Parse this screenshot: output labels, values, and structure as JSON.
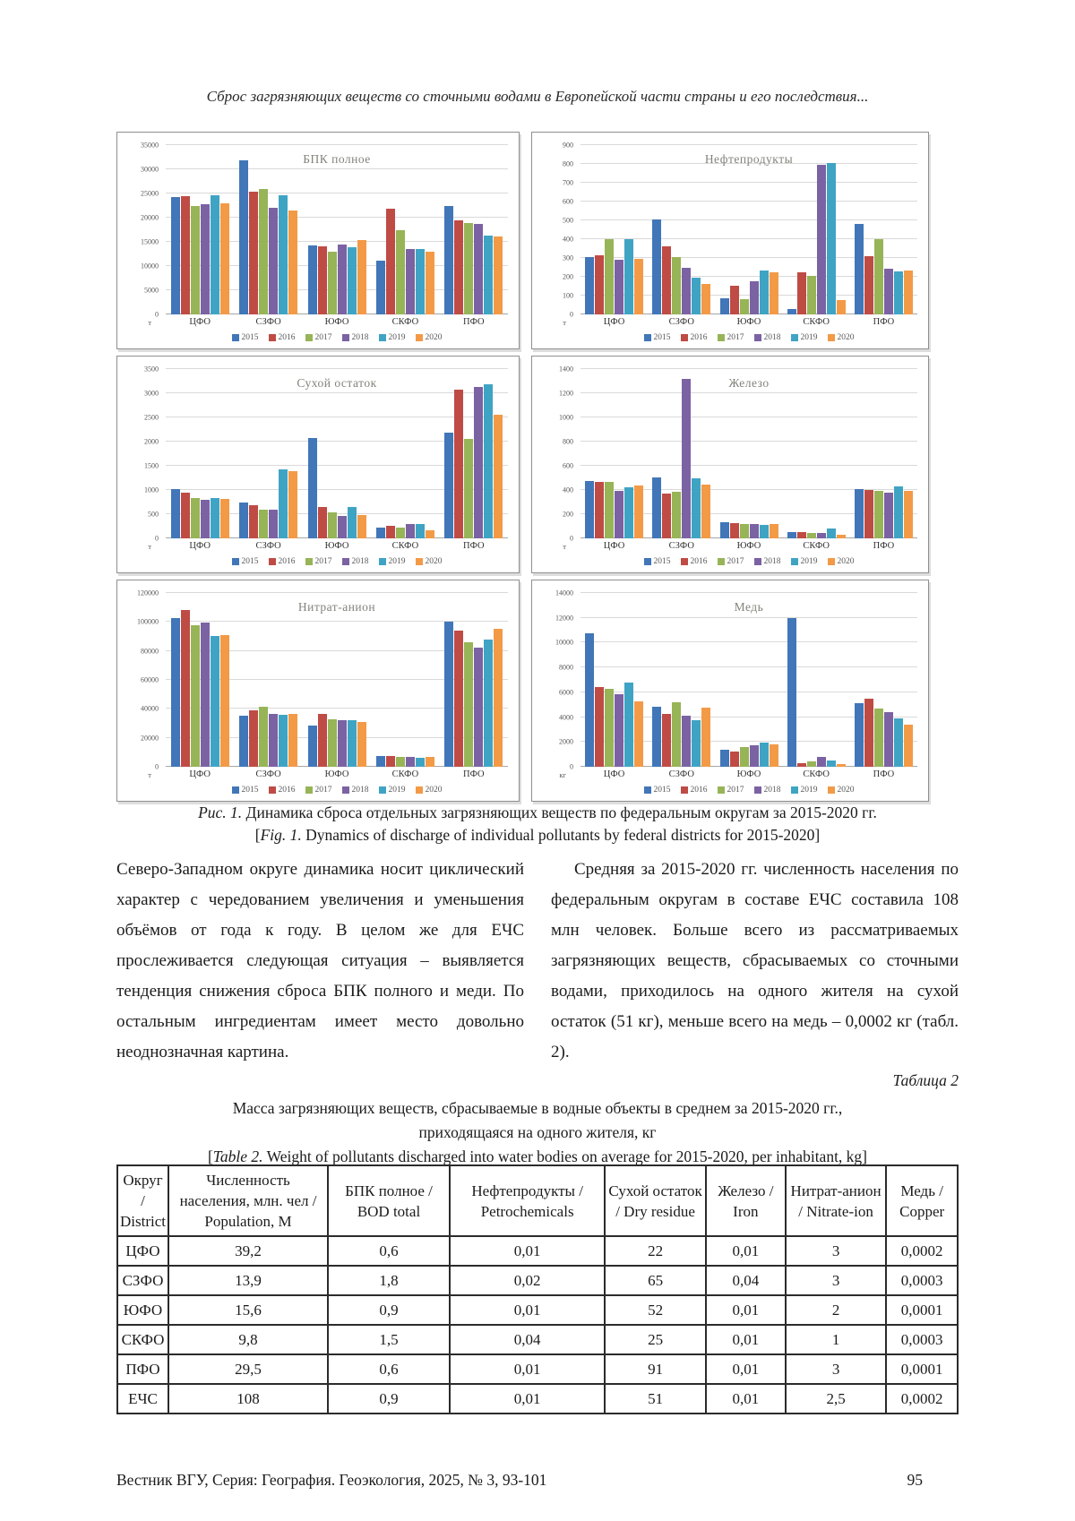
{
  "page": {
    "running_head": "Сброс загрязняющих веществ со сточными водами в Европейской части страны и его последствия...",
    "footer": {
      "journal": "Вестник ВГУ, Серия: География. Геоэкология, 2025, № 3, 93-101",
      "page_number": "95"
    }
  },
  "figure": {
    "caption_ru_label": "Рис. 1.",
    "caption_ru": "Динамика сброса отдельных загрязняющих веществ по федеральным округам за 2015-2020 гг.",
    "caption_en_open": "[",
    "caption_en_label": "Fig. 1.",
    "caption_en": "Dynamics of discharge of individual pollutants by federal districts for 2015-2020]"
  },
  "chart_data": [
    {
      "type": "bar",
      "title": "БПК полное",
      "unit": "т",
      "categories": [
        "ЦФО",
        "СЗФО",
        "ЮФО",
        "СКФО",
        "ПФО"
      ],
      "ylim": [
        0,
        35000
      ],
      "ytick_step": 5000,
      "grid": true,
      "legend_position": "bottom",
      "palette": [
        "#4176b8",
        "#bf4b45",
        "#97b457",
        "#7b62a3",
        "#3fa4c4",
        "#f39a47"
      ],
      "series": [
        {
          "name": "2015",
          "values": [
            24200,
            31900,
            14200,
            11200,
            22500
          ]
        },
        {
          "name": "2016",
          "values": [
            24500,
            25300,
            14100,
            21900,
            19500
          ]
        },
        {
          "name": "2017",
          "values": [
            22500,
            25900,
            13000,
            17500,
            18800
          ]
        },
        {
          "name": "2018",
          "values": [
            22800,
            22000,
            14400,
            13500,
            18700
          ]
        },
        {
          "name": "2019",
          "values": [
            24600,
            24700,
            13900,
            13500,
            16300
          ]
        },
        {
          "name": "2020",
          "values": [
            23000,
            21500,
            15300,
            12900,
            16100
          ]
        }
      ]
    },
    {
      "type": "bar",
      "title": "Нефтепродукты",
      "unit": "т",
      "categories": [
        "ЦФО",
        "СЗФО",
        "ЮФО",
        "СКФО",
        "ПФО"
      ],
      "ylim": [
        0,
        900
      ],
      "ytick_step": 100,
      "grid": true,
      "legend_position": "bottom",
      "palette": [
        "#4176b8",
        "#bf4b45",
        "#97b457",
        "#7b62a3",
        "#3fa4c4",
        "#f39a47"
      ],
      "series": [
        {
          "name": "2015",
          "values": [
            305,
            505,
            88,
            30,
            480
          ]
        },
        {
          "name": "2016",
          "values": [
            312,
            360,
            152,
            222,
            308
          ]
        },
        {
          "name": "2017",
          "values": [
            400,
            303,
            80,
            207,
            400
          ]
        },
        {
          "name": "2018",
          "values": [
            290,
            247,
            177,
            797,
            245
          ]
        },
        {
          "name": "2019",
          "values": [
            400,
            197,
            233,
            805,
            230
          ]
        },
        {
          "name": "2020",
          "values": [
            293,
            163,
            222,
            75,
            235
          ]
        }
      ]
    },
    {
      "type": "bar",
      "title": "Сухой остаток",
      "unit": "т",
      "categories": [
        "ЦФО",
        "СЗФО",
        "ЮФО",
        "СКФО",
        "ПФО"
      ],
      "ylim": [
        0,
        3500
      ],
      "ytick_step": 500,
      "grid": true,
      "legend_position": "bottom",
      "palette": [
        "#4176b8",
        "#bf4b45",
        "#97b457",
        "#7b62a3",
        "#3fa4c4",
        "#f39a47"
      ],
      "series": [
        {
          "name": "2015",
          "values": [
            1010,
            740,
            2080,
            220,
            2180
          ]
        },
        {
          "name": "2016",
          "values": [
            940,
            690,
            640,
            260,
            3080
          ]
        },
        {
          "name": "2017",
          "values": [
            840,
            600,
            540,
            230,
            2050
          ]
        },
        {
          "name": "2018",
          "values": [
            790,
            590,
            460,
            300,
            3130
          ]
        },
        {
          "name": "2019",
          "values": [
            830,
            1420,
            640,
            290,
            3190
          ]
        },
        {
          "name": "2020",
          "values": [
            810,
            1390,
            490,
            170,
            2560
          ]
        }
      ]
    },
    {
      "type": "bar",
      "title": "Железо",
      "unit": "т",
      "categories": [
        "ЦФО",
        "СЗФО",
        "ЮФО",
        "СКФО",
        "ПФО"
      ],
      "ylim": [
        0,
        1400
      ],
      "ytick_step": 200,
      "grid": true,
      "legend_position": "bottom",
      "palette": [
        "#4176b8",
        "#bf4b45",
        "#97b457",
        "#7b62a3",
        "#3fa4c4",
        "#f39a47"
      ],
      "series": [
        {
          "name": "2015",
          "values": [
            475,
            505,
            130,
            50,
            410
          ]
        },
        {
          "name": "2016",
          "values": [
            465,
            370,
            125,
            50,
            400
          ]
        },
        {
          "name": "2017",
          "values": [
            465,
            385,
            115,
            45,
            395
          ]
        },
        {
          "name": "2018",
          "values": [
            390,
            1320,
            115,
            45,
            380
          ]
        },
        {
          "name": "2019",
          "values": [
            420,
            500,
            110,
            80,
            430
          ]
        },
        {
          "name": "2020",
          "values": [
            440,
            445,
            115,
            30,
            390
          ]
        }
      ]
    },
    {
      "type": "bar",
      "title": "Нитрат-анион",
      "unit": "т",
      "categories": [
        "ЦФО",
        "СЗФО",
        "ЮФО",
        "СКФО",
        "ПФО"
      ],
      "ylim": [
        0,
        120000
      ],
      "ytick_step": 20000,
      "grid": true,
      "legend_position": "bottom",
      "palette": [
        "#4176b8",
        "#bf4b45",
        "#97b457",
        "#7b62a3",
        "#3fa4c4",
        "#f39a47"
      ],
      "series": [
        {
          "name": "2015",
          "values": [
            102500,
            35500,
            28500,
            7500,
            100300
          ]
        },
        {
          "name": "2016",
          "values": [
            108500,
            39000,
            36200,
            7200,
            94000
          ]
        },
        {
          "name": "2017",
          "values": [
            97500,
            41500,
            32500,
            7000,
            86000
          ]
        },
        {
          "name": "2018",
          "values": [
            99500,
            36500,
            32300,
            6800,
            82500
          ]
        },
        {
          "name": "2019",
          "values": [
            90500,
            35800,
            32000,
            6500,
            88000
          ]
        },
        {
          "name": "2020",
          "values": [
            91000,
            36300,
            30800,
            6700,
            95500
          ]
        }
      ]
    },
    {
      "type": "bar",
      "title": "Медь",
      "unit": "кг",
      "categories": [
        "ЦФО",
        "СЗФО",
        "ЮФО",
        "СКФО",
        "ПФО"
      ],
      "ylim": [
        0,
        14000
      ],
      "ytick_step": 2000,
      "grid": true,
      "legend_position": "bottom",
      "palette": [
        "#4176b8",
        "#bf4b45",
        "#97b457",
        "#7b62a3",
        "#3fa4c4",
        "#f39a47"
      ],
      "series": [
        {
          "name": "2015",
          "values": [
            10750,
            4850,
            1400,
            11950,
            5100
          ]
        },
        {
          "name": "2016",
          "values": [
            6450,
            4250,
            1200,
            300,
            5450
          ]
        },
        {
          "name": "2017",
          "values": [
            6250,
            5200,
            1600,
            450,
            4700
          ]
        },
        {
          "name": "2018",
          "values": [
            5850,
            4100,
            1750,
            800,
            4400
          ]
        },
        {
          "name": "2019",
          "values": [
            6750,
            3750,
            1950,
            500,
            3900
          ]
        },
        {
          "name": "2020",
          "values": [
            5250,
            4800,
            1800,
            250,
            3400
          ]
        }
      ]
    }
  ],
  "body": {
    "col_left": "Северо-Западном округе динамика носит циклический характер с чередованием увеличения и уменьшения объёмов от года к году. В целом же для ЕЧС прослеживается следующая ситуация – выявляется тенденция снижения сброса БПК полного и меди. По остальным ингредиентам имеет место довольно неоднозначная картина.",
    "col_right": "Средняя за 2015-2020 гг. численность населения по федеральным округам в составе ЕЧС составила 108 млн человек. Больше всего из рассматриваемых загрязняющих веществ, сбрасываемых со сточными водами, приходилось на одного жителя на сухой остаток (51 кг), меньше всего на медь – 0,0002 кг (табл. 2)."
  },
  "table": {
    "label": "Таблица 2",
    "caption_ru_line1": "Масса загрязняющих веществ, сбрасываемые в водные объекты в среднем за 2015-2020 гг.,",
    "caption_ru_line2": "приходящаяся на одного жителя, кг",
    "caption_en_open": "[",
    "caption_en_label": "Table 2.",
    "caption_en": "Weight of pollutants discharged into water bodies on average for 2015-2020, per inhabitant, kg]",
    "headers": [
      "Округ / District",
      "Численность населения, млн. чел / Population, M",
      "БПК полное / BOD total",
      "Нефтепродукты / Petrochemicals",
      "Сухой остаток / Dry residue",
      "Железо / Iron",
      "Нитрат-анион / Nitrate-ion",
      "Медь / Copper"
    ],
    "col_widths": [
      "6%",
      "19%",
      "14.5%",
      "18.5%",
      "12%",
      "9.5%",
      "12%",
      "8.5%"
    ],
    "rows": [
      [
        "ЦФО",
        "39,2",
        "0,6",
        "0,01",
        "22",
        "0,01",
        "3",
        "0,0002"
      ],
      [
        "СЗФО",
        "13,9",
        "1,8",
        "0,02",
        "65",
        "0,04",
        "3",
        "0,0003"
      ],
      [
        "ЮФО",
        "15,6",
        "0,9",
        "0,01",
        "52",
        "0,01",
        "2",
        "0,0001"
      ],
      [
        "СКФО",
        "9,8",
        "1,5",
        "0,04",
        "25",
        "0,01",
        "1",
        "0,0003"
      ],
      [
        "ПФО",
        "29,5",
        "0,6",
        "0,01",
        "91",
        "0,01",
        "3",
        "0,0001"
      ],
      [
        "ЕЧС",
        "108",
        "0,9",
        "0,01",
        "51",
        "0,01",
        "2,5",
        "0,0002"
      ]
    ]
  }
}
